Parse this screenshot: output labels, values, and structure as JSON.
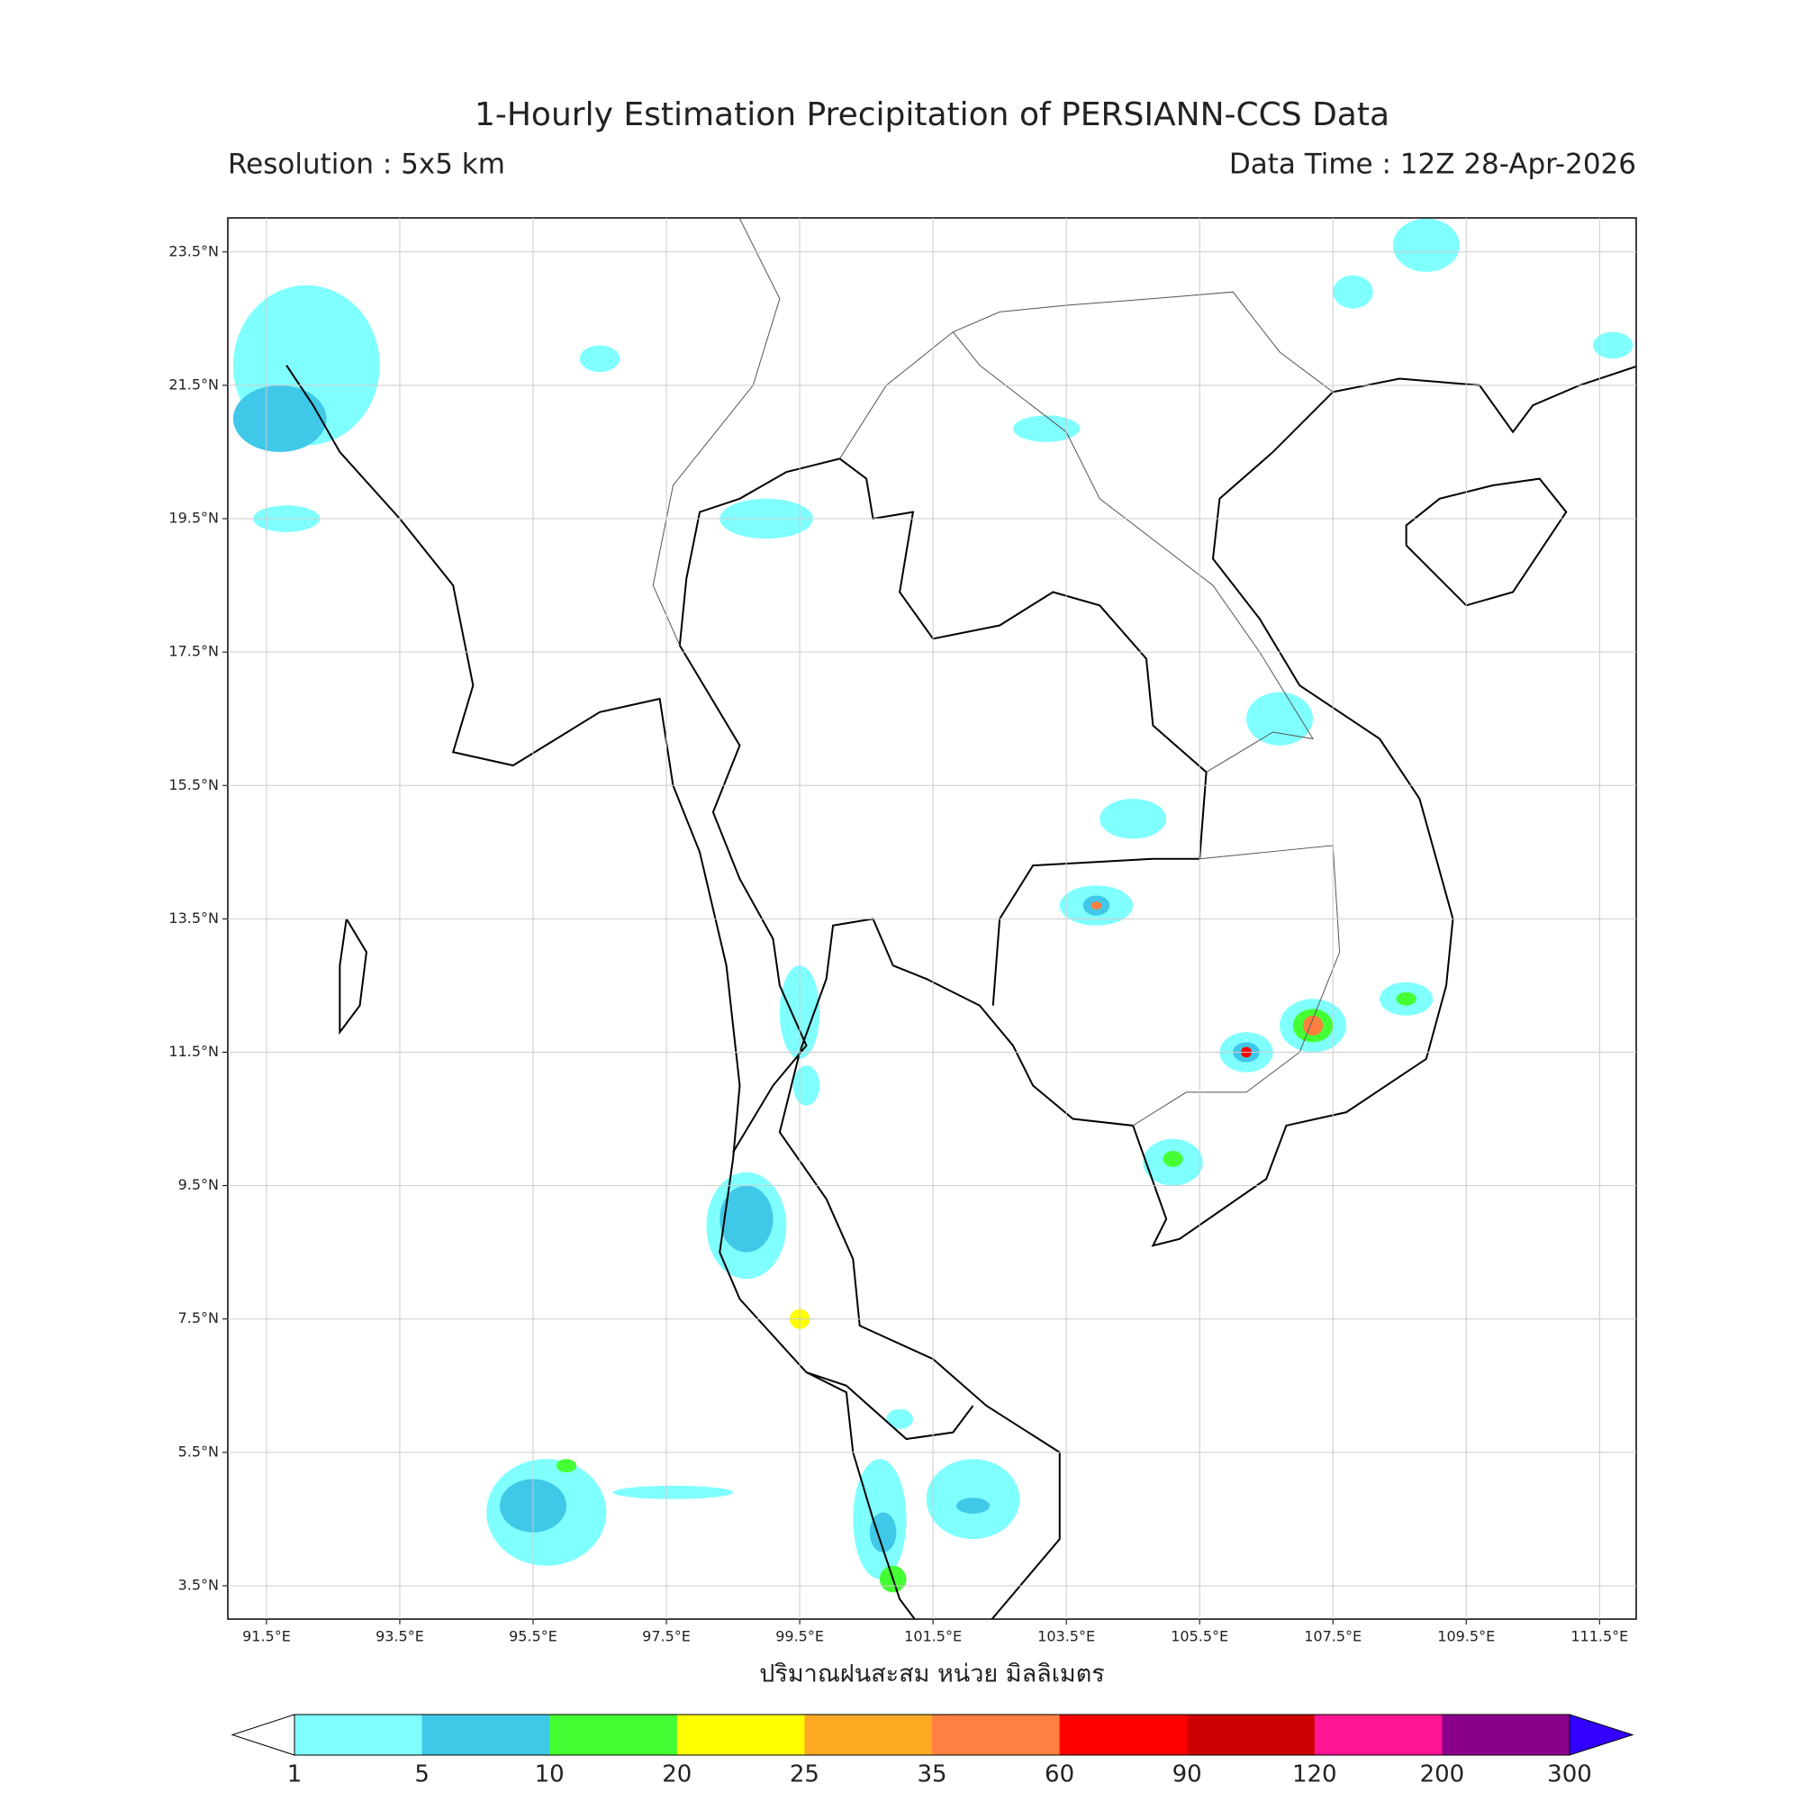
{
  "header": {
    "title": "1-Hourly Estimation Precipitation of PERSIANN-CCS Data",
    "resolution": "Resolution : 5x5 km",
    "data_time": "Data Time : 12Z 28-Apr-2026"
  },
  "map": {
    "xlim": [
      90.92,
      112.05
    ],
    "ylim": [
      3.0,
      24.01
    ],
    "xticks": [
      {
        "value": 91.5,
        "label": "91.5°E"
      },
      {
        "value": 93.5,
        "label": "93.5°E"
      },
      {
        "value": 95.5,
        "label": "95.5°E"
      },
      {
        "value": 97.5,
        "label": "97.5°E"
      },
      {
        "value": 99.5,
        "label": "99.5°E"
      },
      {
        "value": 101.5,
        "label": "101.5°E"
      },
      {
        "value": 103.5,
        "label": "103.5°E"
      },
      {
        "value": 105.5,
        "label": "105.5°E"
      },
      {
        "value": 107.5,
        "label": "107.5°E"
      },
      {
        "value": 109.5,
        "label": "109.5°E"
      },
      {
        "value": 111.5,
        "label": "111.5°E"
      }
    ],
    "yticks": [
      {
        "value": 23.5,
        "label": "23.5°N"
      },
      {
        "value": 21.5,
        "label": "21.5°N"
      },
      {
        "value": 19.5,
        "label": "19.5°N"
      },
      {
        "value": 17.5,
        "label": "17.5°N"
      },
      {
        "value": 15.5,
        "label": "15.5°N"
      },
      {
        "value": 13.5,
        "label": "13.5°N"
      },
      {
        "value": 11.5,
        "label": "11.5°N"
      },
      {
        "value": 9.5,
        "label": "9.5°N"
      },
      {
        "value": 7.5,
        "label": "7.5°N"
      },
      {
        "value": 5.5,
        "label": "5.5°N"
      },
      {
        "value": 3.5,
        "label": "3.5°N"
      }
    ],
    "xlabel": "ปริมาณฝนสะสม หน่วย มิลลิเมตร",
    "grid": true
  },
  "colorbar": {
    "levels": [
      1,
      5,
      10,
      20,
      25,
      35,
      60,
      90,
      120,
      200,
      300
    ],
    "colors": [
      "#80ffff",
      "#40c8e8",
      "#44ff33",
      "#ffff00",
      "#ffaa22",
      "#ff8040",
      "#ff0000",
      "#cc0000",
      "#ff1493",
      "#8b008b"
    ],
    "under_color": "#ffffff",
    "over_color": "#3300ff"
  }
}
